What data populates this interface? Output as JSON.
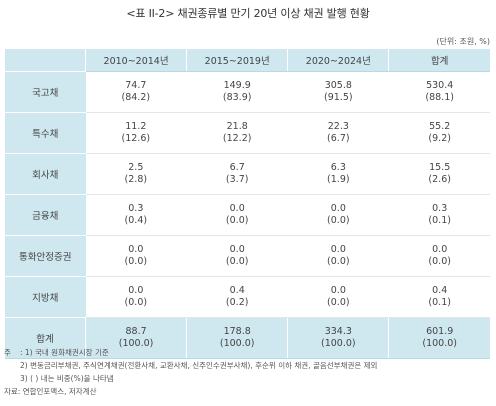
{
  "title": "<표 II-2> 채권종류별 만기 20년 이상 채권 발행 현황",
  "unit": "(단위: 조원, %)",
  "table": {
    "columns": [
      "",
      "2010~2014년",
      "2015~2019년",
      "2020~2024년",
      "합계"
    ],
    "rows": [
      {
        "label": "국고채",
        "cells": [
          [
            "74.7",
            "(84.2)"
          ],
          [
            "149.9",
            "(83.9)"
          ],
          [
            "305.8",
            "(91.5)"
          ],
          [
            "530.4",
            "(88.1)"
          ]
        ]
      },
      {
        "label": "특수채",
        "cells": [
          [
            "11.2",
            "(12.6)"
          ],
          [
            "21.8",
            "(12.2)"
          ],
          [
            "22.3",
            "(6.7)"
          ],
          [
            "55.2",
            "(9.2)"
          ]
        ]
      },
      {
        "label": "회사채",
        "cells": [
          [
            "2.5",
            "(2.8)"
          ],
          [
            "6.7",
            "(3.7)"
          ],
          [
            "6.3",
            "(1.9)"
          ],
          [
            "15.5",
            "(2.6)"
          ]
        ]
      },
      {
        "label": "금융채",
        "cells": [
          [
            "0.3",
            "(0.4)"
          ],
          [
            "0.0",
            "(0.0)"
          ],
          [
            "0.0",
            "(0.0)"
          ],
          [
            "0.3",
            "(0.1)"
          ]
        ]
      },
      {
        "label": "통화안정증권",
        "cells": [
          [
            "0.0",
            "(0.0)"
          ],
          [
            "0.0",
            "(0.0)"
          ],
          [
            "0.0",
            "(0.0)"
          ],
          [
            "0.0",
            "(0.0)"
          ]
        ]
      },
      {
        "label": "지방채",
        "cells": [
          [
            "0.0",
            "(0.0)"
          ],
          [
            "0.4",
            "(0.2)"
          ],
          [
            "0.0",
            "(0.0)"
          ],
          [
            "0.4",
            "(0.1)"
          ]
        ]
      }
    ],
    "total": {
      "label": "합계",
      "cells": [
        [
          "88.7",
          "(100.0)"
        ],
        [
          "178.8",
          "(100.0)"
        ],
        [
          "334.3",
          "(100.0)"
        ],
        [
          "601.9",
          "(100.0)"
        ]
      ]
    }
  },
  "notes": {
    "prefix": "주",
    "lines": [
      ": 1) 국내 원화채권시장 기준",
      "2) 변동금리부채권, 주식연계채권(전환사채, 교환사채, 신주인수권부사채), 후순위 이하 채권, 골음선부채권은 제외",
      "3) ( ) 내는 비중(%)을 나타냄"
    ],
    "source": "자료: 연합인포맥스, 저자계산"
  }
}
